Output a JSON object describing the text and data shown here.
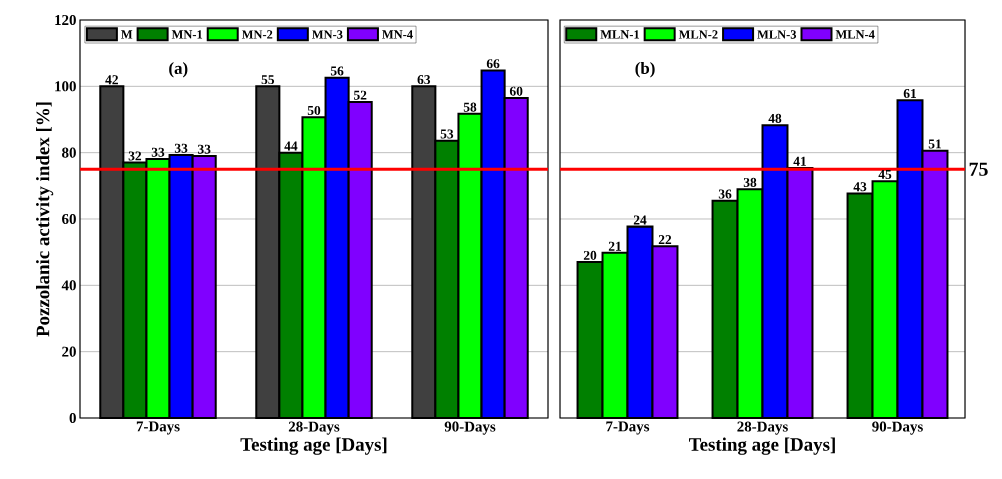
{
  "chart_data": [
    {
      "type": "bar",
      "categories": [
        "7-Days",
        "28-Days",
        "90-Days"
      ],
      "xlabel": "Testing age [Days]",
      "ylabel": "Pozzolanic activity index [%]",
      "ylim": [
        0,
        120
      ],
      "yticks": [
        0,
        20,
        40,
        60,
        80,
        100,
        120
      ],
      "grid": "y",
      "legend": "top left",
      "ref_lines": [
        {
          "axis": "y",
          "value": 75,
          "color": "#ff0000"
        }
      ],
      "series": [
        {
          "name": "M",
          "color": "#404040",
          "values": [
            100,
            100,
            100
          ]
        },
        {
          "name": "MN-1",
          "color": "#008000",
          "values": [
            77,
            80,
            83.6
          ]
        },
        {
          "name": "MN-2",
          "color": "#00ff00",
          "values": [
            78.1,
            90.7,
            91.7
          ]
        },
        {
          "name": "MN-3",
          "color": "#0000ff",
          "values": [
            79.3,
            102.6,
            104.8
          ]
        },
        {
          "name": "MN-4",
          "color": "#8000ff",
          "values": [
            79,
            95.3,
            96.5
          ]
        }
      ],
      "annotations": [
        "(a)",
        "42",
        "32",
        "33",
        "33",
        "33",
        "55",
        "44",
        "50",
        "56",
        "52",
        "63",
        "53",
        "58",
        "66",
        "60"
      ]
    },
    {
      "type": "bar",
      "categories": [
        "7-Days",
        "28-Days",
        "90-Days"
      ],
      "xlabel": "Testing age [Days]",
      "ylim": [
        0,
        120
      ],
      "yticks": [
        0,
        20,
        40,
        60,
        80,
        100,
        120
      ],
      "grid": "y",
      "legend": "top left",
      "tick_labels": "x",
      "ref_lines": [
        {
          "axis": "y",
          "value": 75,
          "label": "75",
          "color": "#ff0000"
        }
      ],
      "series": [
        {
          "name": "MLN-1",
          "color": "#008000",
          "values": [
            47,
            65.5,
            67.7
          ]
        },
        {
          "name": "MLN-2",
          "color": "#00ff00",
          "values": [
            49.8,
            69,
            71.4
          ]
        },
        {
          "name": "MLN-3",
          "color": "#0000ff",
          "values": [
            57.7,
            88.3,
            95.8
          ]
        },
        {
          "name": "MLN-4",
          "color": "#8000ff",
          "values": [
            51.8,
            75.4,
            80.6
          ]
        }
      ],
      "annotations": [
        "(b)",
        "20",
        "21",
        "24",
        "22",
        "36",
        "38",
        "48",
        "41",
        "43",
        "45",
        "61",
        "51"
      ]
    }
  ]
}
